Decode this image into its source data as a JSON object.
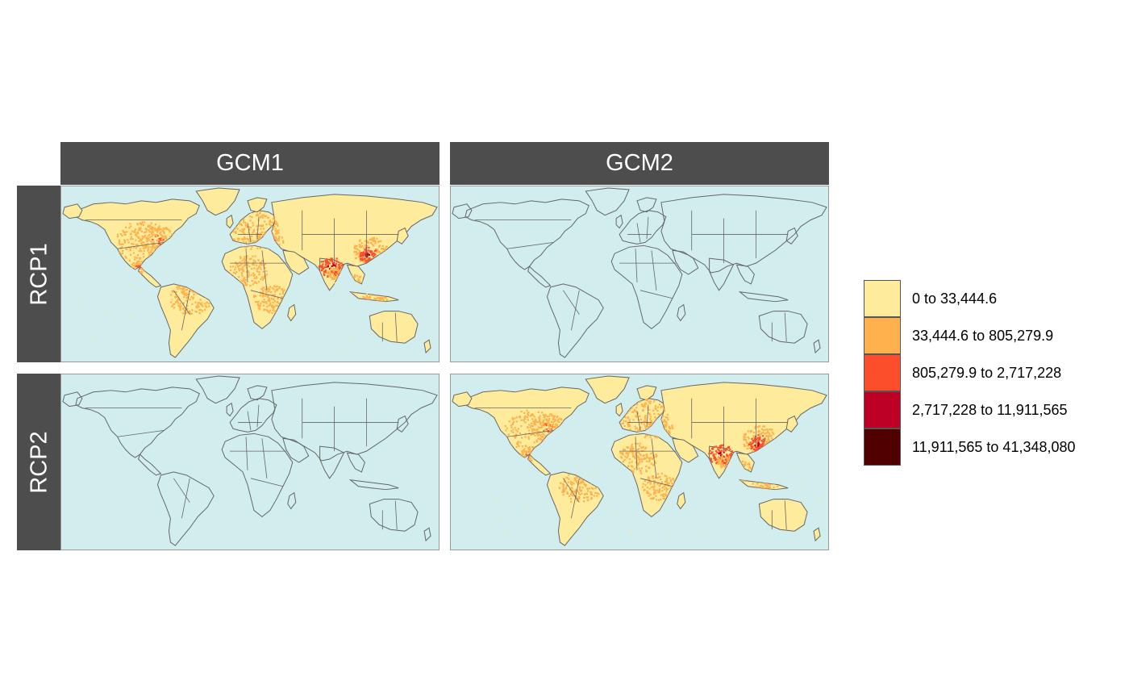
{
  "facets": {
    "columns": [
      "GCM1",
      "GCM2"
    ],
    "rows": [
      "RCP1",
      "RCP2"
    ]
  },
  "panels": [
    {
      "row": "RCP1",
      "column": "GCM1",
      "filled": true
    },
    {
      "row": "RCP1",
      "column": "GCM2",
      "filled": false
    },
    {
      "row": "RCP2",
      "column": "GCM1",
      "filled": false
    },
    {
      "row": "RCP2",
      "column": "GCM2",
      "filled": true
    }
  ],
  "legend": {
    "items": [
      {
        "label": "0 to 33,444.6",
        "color": "#ffeb9c"
      },
      {
        "label": "33,444.6 to 805,279.9",
        "color": "#feb14c"
      },
      {
        "label": "805,279.9 to 2,717,228",
        "color": "#fc4e2a"
      },
      {
        "label": "2,717,228 to 11,911,565",
        "color": "#bd0026"
      },
      {
        "label": "11,911,565 to 41,348,080",
        "color": "#500000"
      }
    ]
  },
  "colors": {
    "ocean": "#d1eded",
    "border": "#666666",
    "strip": "#4d4d4d"
  }
}
